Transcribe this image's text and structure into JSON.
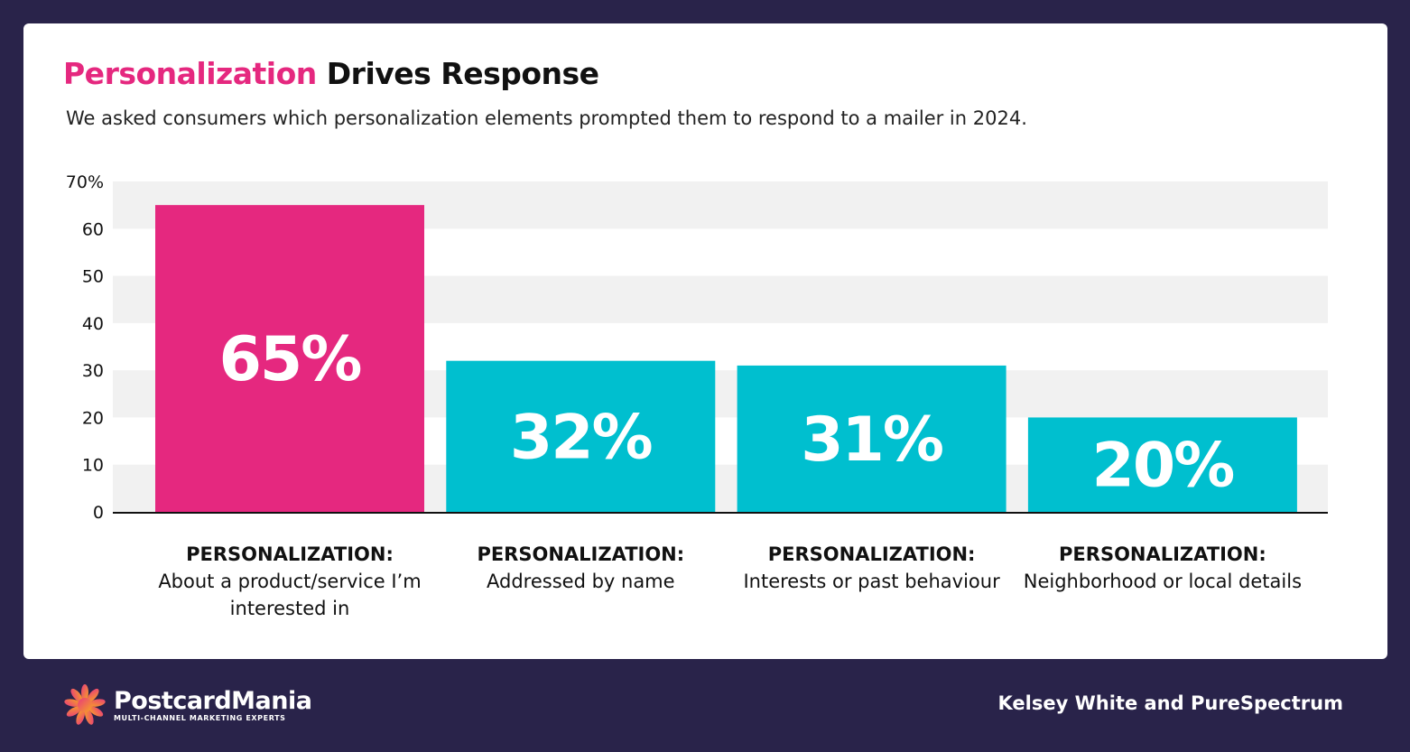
{
  "title": {
    "accent": "Personalization",
    "rest": "Drives Response"
  },
  "subtitle": "We asked consumers which personalization elements prompted them to respond to a mailer in 2024.",
  "chart_data": {
    "type": "bar",
    "categories": [
      {
        "head": "PERSONALIZATION:",
        "label": "About a product/service I’m interested in"
      },
      {
        "head": "PERSONALIZATION:",
        "label": "Addressed by name"
      },
      {
        "head": "PERSONALIZATION:",
        "label": "Interests or past behaviour"
      },
      {
        "head": "PERSONALIZATION:",
        "label": "Neighborhood or local details"
      }
    ],
    "values": [
      65,
      32,
      31,
      20
    ],
    "data_labels": [
      "65%",
      "32%",
      "31%",
      "20%"
    ],
    "colors": [
      "#e5287f",
      "#00bfcf",
      "#00bfcf",
      "#00bfcf"
    ],
    "ylim": [
      0,
      70
    ],
    "yticks": [
      0,
      10,
      20,
      30,
      40,
      50,
      60,
      70
    ],
    "ytick_labels": [
      "0",
      "10",
      "20",
      "30",
      "40",
      "50",
      "60",
      "70%"
    ],
    "grid": "alternating bands",
    "band_color": "#f1f1f1"
  },
  "footer": {
    "logo_name": "PostcardMania",
    "logo_tagline": "MULTI-CHANNEL MARKETING EXPERTS",
    "source": "Kelsey White and PureSpectrum"
  }
}
